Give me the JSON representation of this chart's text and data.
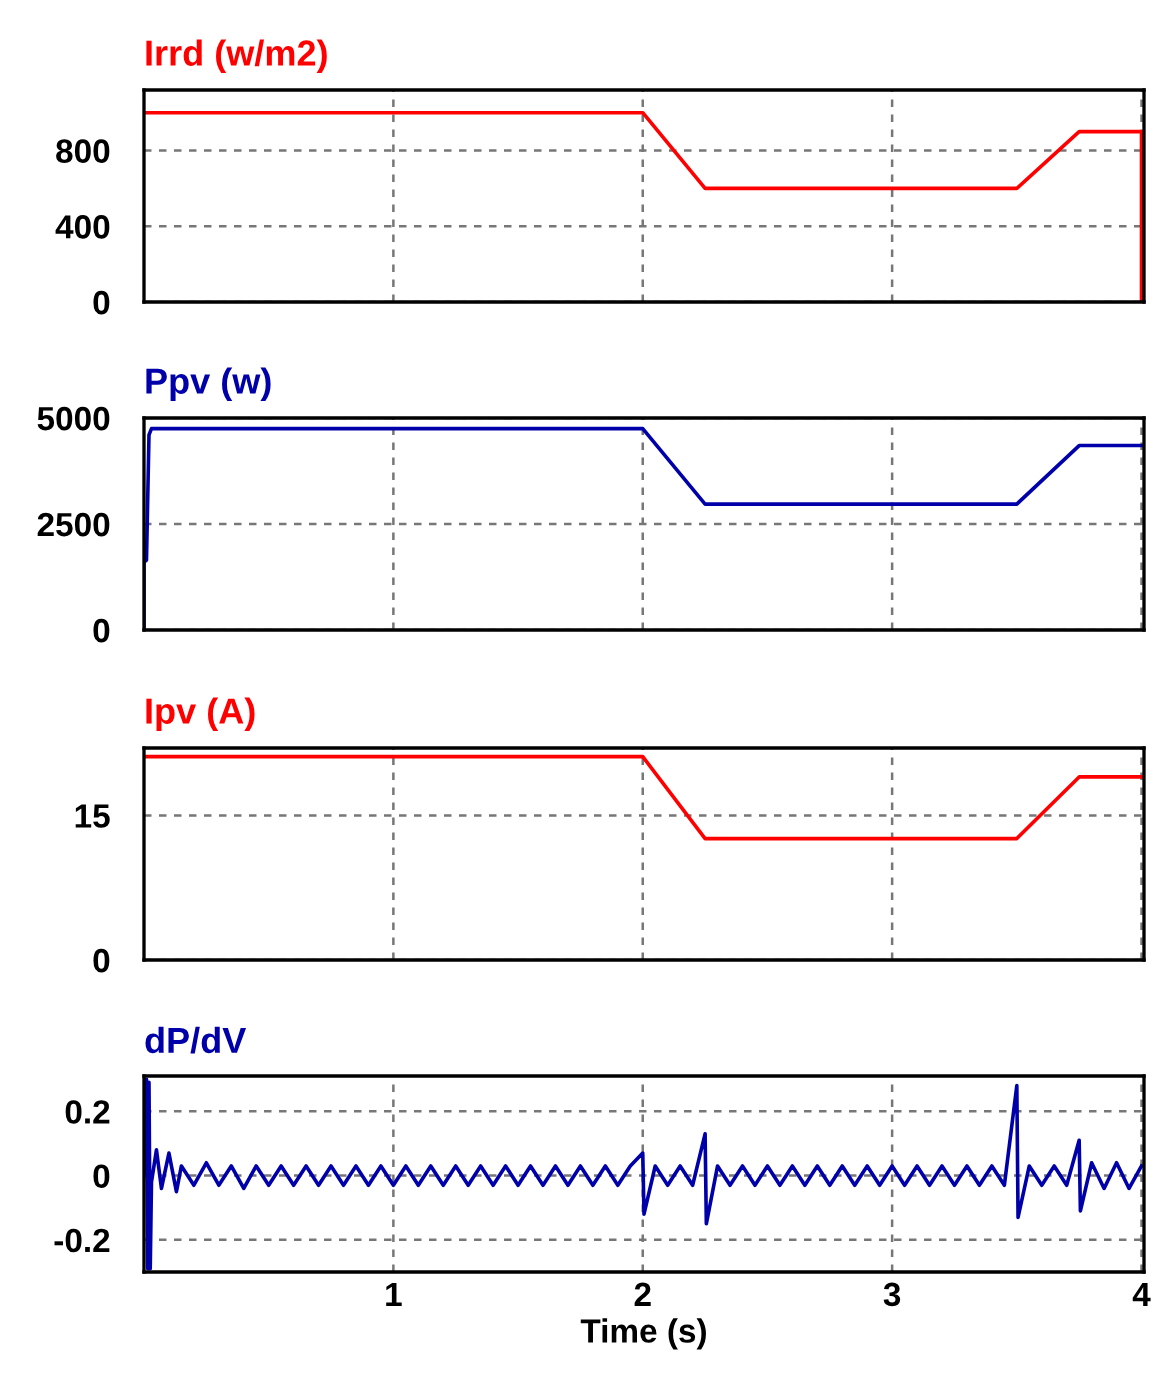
{
  "chart_data": [
    {
      "type": "line",
      "title": "Irrd (w/m2)",
      "xlim": [
        0,
        4.01
      ],
      "xticks": [
        1,
        2,
        3,
        4
      ],
      "ylim": [
        0,
        1120
      ],
      "yticks": [
        0,
        400,
        800
      ],
      "grid": true,
      "tick_labels": "y",
      "series": [
        {
          "color": "#ff0000",
          "x": [
            0,
            2,
            2.25,
            3.5,
            3.75,
            4,
            4
          ],
          "values": [
            1000,
            1000,
            600,
            600,
            900,
            900,
            0
          ]
        }
      ]
    },
    {
      "type": "line",
      "title": "Ppv (w)",
      "xlim": [
        0,
        4.01
      ],
      "xticks": [
        1,
        2,
        3,
        4
      ],
      "ylim": [
        0,
        5000
      ],
      "yticks": [
        0,
        2500,
        5000
      ],
      "grid": true,
      "tick_labels": "y",
      "series": [
        {
          "color": "#0000aa",
          "x": [
            0,
            0,
            0.01,
            0.02,
            0.03,
            2,
            2.25,
            3.5,
            3.75,
            4
          ],
          "values": [
            0,
            1600,
            1650,
            4600,
            4750,
            4750,
            2970,
            2970,
            4350,
            4350
          ]
        }
      ]
    },
    {
      "type": "line",
      "title": "Ipv (A)",
      "xlim": [
        0,
        4.01
      ],
      "xticks": [
        1,
        2,
        3,
        4
      ],
      "ylim": [
        0,
        22
      ],
      "yticks": [
        0,
        15
      ],
      "grid": true,
      "tick_labels": "y",
      "series": [
        {
          "color": "#ff0000",
          "x": [
            0,
            2,
            2.25,
            3.5,
            3.75,
            4
          ],
          "values": [
            21.1,
            21.1,
            12.6,
            12.6,
            19,
            19
          ]
        }
      ]
    },
    {
      "type": "line",
      "title": "dP/dV",
      "xlabel": "Time (s)",
      "xlim": [
        0,
        4.01
      ],
      "xticks": [
        1,
        2,
        3,
        4
      ],
      "ylim": [
        -0.3,
        0.31
      ],
      "yticks": [
        -0.2,
        0,
        0.2
      ],
      "grid": true,
      "series": [
        {
          "color": "#0000aa",
          "x": [
            0,
            0.01,
            0.015,
            0.02,
            0.025,
            0.03,
            0.05,
            0.07,
            0.1,
            0.13,
            0.15,
            0.2,
            0.25,
            0.3,
            0.35,
            0.4,
            0.45,
            0.5,
            0.55,
            0.6,
            0.65,
            0.7,
            0.75,
            0.8,
            0.85,
            0.9,
            0.95,
            1.0,
            1.05,
            1.1,
            1.15,
            1.2,
            1.25,
            1.3,
            1.35,
            1.4,
            1.45,
            1.5,
            1.55,
            1.6,
            1.65,
            1.7,
            1.75,
            1.8,
            1.85,
            1.9,
            1.95,
            2.0,
            2.005,
            2.05,
            2.1,
            2.15,
            2.2,
            2.25,
            2.255,
            2.3,
            2.35,
            2.4,
            2.45,
            2.5,
            2.55,
            2.6,
            2.65,
            2.7,
            2.75,
            2.8,
            2.85,
            2.9,
            2.95,
            3.0,
            3.05,
            3.1,
            3.15,
            3.2,
            3.25,
            3.3,
            3.35,
            3.4,
            3.45,
            3.5,
            3.505,
            3.55,
            3.6,
            3.65,
            3.7,
            3.75,
            3.755,
            3.8,
            3.85,
            3.9,
            3.95,
            4.0
          ],
          "values": [
            0,
            0.3,
            -0.29,
            0.29,
            -0.29,
            -0.02,
            0.08,
            -0.04,
            0.07,
            -0.05,
            0.03,
            -0.03,
            0.04,
            -0.03,
            0.03,
            -0.04,
            0.03,
            -0.03,
            0.03,
            -0.03,
            0.03,
            -0.03,
            0.03,
            -0.03,
            0.03,
            -0.03,
            0.03,
            -0.03,
            0.03,
            -0.03,
            0.03,
            -0.03,
            0.03,
            -0.03,
            0.03,
            -0.03,
            0.03,
            -0.03,
            0.03,
            -0.03,
            0.03,
            -0.03,
            0.03,
            -0.03,
            0.03,
            -0.03,
            0.03,
            0.07,
            -0.12,
            0.03,
            -0.03,
            0.03,
            -0.03,
            0.13,
            -0.15,
            0.03,
            -0.03,
            0.03,
            -0.03,
            0.03,
            -0.03,
            0.03,
            -0.03,
            0.03,
            -0.03,
            0.03,
            -0.03,
            0.03,
            -0.03,
            0.03,
            -0.03,
            0.03,
            -0.03,
            0.03,
            -0.03,
            0.03,
            -0.03,
            0.03,
            -0.03,
            0.28,
            -0.13,
            0.03,
            -0.03,
            0.03,
            -0.03,
            0.11,
            -0.11,
            0.04,
            -0.04,
            0.04,
            -0.04,
            0.03
          ]
        }
      ]
    }
  ]
}
